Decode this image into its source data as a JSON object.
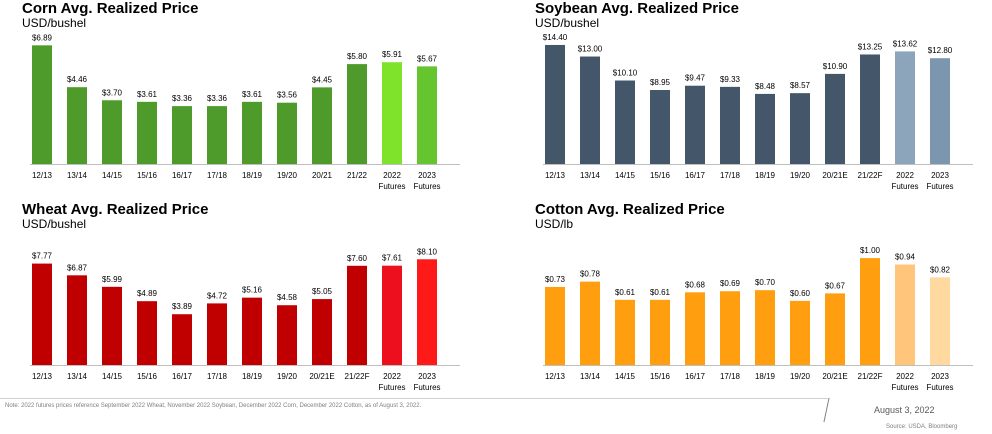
{
  "footer": {
    "note": "Note: 2022 futures prices reference September 2022 Wheat, November 2022 Soybean, December 2022 Corn, December 2022 Cotton, as of August 3, 2022.",
    "date": "August 3, 2022",
    "source": "Source: USDA, Bloomberg"
  },
  "chart_data": [
    {
      "id": "corn",
      "type": "bar",
      "title": "Corn Avg. Realized Price",
      "subtitle": "USD/bushel",
      "categories": [
        "12/13",
        "13/14",
        "14/15",
        "15/16",
        "16/17",
        "17/18",
        "18/19",
        "19/20",
        "20/21",
        "21/22",
        "2022\nFutures",
        "2023\nFutures"
      ],
      "values": [
        6.89,
        4.46,
        3.7,
        3.61,
        3.36,
        3.36,
        3.61,
        3.56,
        4.45,
        5.8,
        5.91,
        5.67
      ],
      "labels": [
        "$6.89",
        "$4.46",
        "$3.70",
        "$3.61",
        "$3.36",
        "$3.36",
        "$3.61",
        "$3.56",
        "$4.45",
        "$5.80",
        "$5.91",
        "$5.67"
      ],
      "colors": [
        "#4e9a2b",
        "#4e9a2b",
        "#4e9a2b",
        "#4e9a2b",
        "#4e9a2b",
        "#4e9a2b",
        "#4e9a2b",
        "#4e9a2b",
        "#4e9a2b",
        "#4e9a2b",
        "#7fe32b",
        "#65c52e"
      ],
      "ylim": [
        0,
        7.2
      ],
      "grid": false
    },
    {
      "id": "soy",
      "type": "bar",
      "title": "Soybean Avg. Realized Price",
      "subtitle": "USD/bushel",
      "categories": [
        "12/13",
        "13/14",
        "14/15",
        "15/16",
        "16/17",
        "17/18",
        "18/19",
        "19/20",
        "20/21E",
        "21/22F",
        "2022\nFutures",
        "2023\nFutures"
      ],
      "values": [
        14.4,
        13.0,
        10.1,
        8.95,
        9.47,
        9.33,
        8.48,
        8.57,
        10.9,
        13.25,
        13.62,
        12.8
      ],
      "labels": [
        "$14.40",
        "$13.00",
        "$10.10",
        "$8.95",
        "$9.47",
        "$9.33",
        "$8.48",
        "$8.57",
        "$10.90",
        "$13.25",
        "$13.62",
        "$12.80"
      ],
      "colors": [
        "#44576a",
        "#44576a",
        "#44576a",
        "#44576a",
        "#44576a",
        "#44576a",
        "#44576a",
        "#44576a",
        "#44576a",
        "#44576a",
        "#8ca5bb",
        "#7b96ae"
      ],
      "ylim": [
        0,
        15.0
      ],
      "grid": false
    },
    {
      "id": "wheat",
      "type": "bar",
      "title": "Wheat Avg. Realized Price",
      "subtitle": "USD/bushel",
      "categories": [
        "12/13",
        "13/14",
        "14/15",
        "15/16",
        "16/17",
        "17/18",
        "18/19",
        "19/20",
        "20/21E",
        "21/22F",
        "2022\nFutures",
        "2023\nFutures"
      ],
      "values": [
        7.77,
        6.87,
        5.99,
        4.89,
        3.89,
        4.72,
        5.16,
        4.58,
        5.05,
        7.6,
        7.61,
        8.1
      ],
      "labels": [
        "$7.77",
        "$6.87",
        "$5.99",
        "$4.89",
        "$3.89",
        "$4.72",
        "$5.16",
        "$4.58",
        "$5.05",
        "$7.60",
        "$7.61",
        "$8.10"
      ],
      "colors": [
        "#c00000",
        "#c00000",
        "#c00000",
        "#c00000",
        "#c00000",
        "#c00000",
        "#c00000",
        "#c00000",
        "#c00000",
        "#c00000",
        "#ee0f1e",
        "#ff1a1a"
      ],
      "ylim": [
        0,
        9.5
      ],
      "grid": false
    },
    {
      "id": "cotton",
      "type": "bar",
      "title": "Cotton Avg. Realized Price",
      "subtitle": "USD/lb",
      "categories": [
        "12/13",
        "13/14",
        "14/15",
        "15/16",
        "16/17",
        "17/18",
        "18/19",
        "19/20",
        "20/21E",
        "21/22F",
        "2022\nFutures",
        "2023\nFutures"
      ],
      "values": [
        0.73,
        0.78,
        0.61,
        0.61,
        0.68,
        0.69,
        0.7,
        0.6,
        0.67,
        1.0,
        0.94,
        0.82
      ],
      "labels": [
        "$0.73",
        "$0.78",
        "$0.61",
        "$0.61",
        "$0.68",
        "$0.69",
        "$0.70",
        "$0.60",
        "$0.67",
        "$1.00",
        "$0.94",
        "$0.82"
      ],
      "colors": [
        "#ff9f0f",
        "#ff9f0f",
        "#ff9f0f",
        "#ff9f0f",
        "#ff9f0f",
        "#ff9f0f",
        "#ff9f0f",
        "#ff9f0f",
        "#ff9f0f",
        "#ff9f0f",
        "#ffc57a",
        "#ffd9a0"
      ],
      "ylim": [
        0,
        1.16
      ],
      "grid": false
    }
  ]
}
